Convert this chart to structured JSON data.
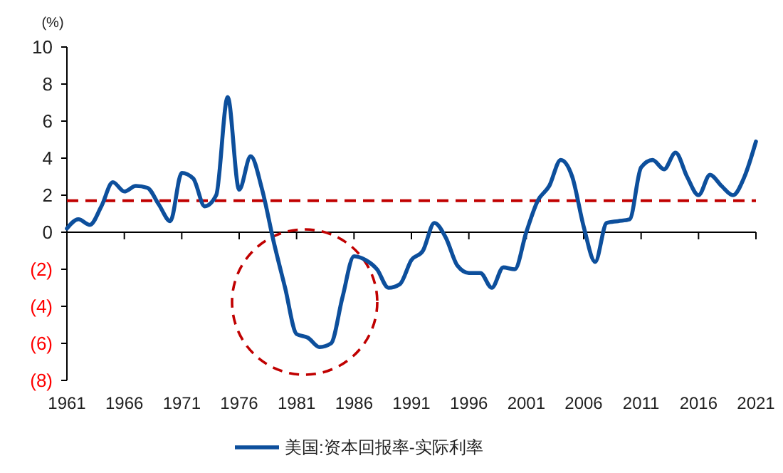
{
  "chart_data": {
    "type": "line",
    "ylabel": "(%)",
    "x": [
      1961,
      1962,
      1963,
      1964,
      1965,
      1966,
      1967,
      1968,
      1969,
      1970,
      1971,
      1972,
      1973,
      1974,
      1975,
      1976,
      1977,
      1978,
      1979,
      1980,
      1981,
      1982,
      1983,
      1984,
      1985,
      1986,
      1987,
      1988,
      1989,
      1990,
      1991,
      1992,
      1993,
      1994,
      1995,
      1996,
      1997,
      1998,
      1999,
      2000,
      2001,
      2002,
      2003,
      2004,
      2005,
      2006,
      2007,
      2008,
      2009,
      2010,
      2011,
      2012,
      2013,
      2014,
      2015,
      2016,
      2017,
      2018,
      2019,
      2020,
      2021
    ],
    "series": [
      {
        "name": "美国:资本回报率-实际利率",
        "color": "#0d4f9c",
        "values": [
          0.2,
          0.7,
          0.4,
          1.4,
          2.7,
          2.2,
          2.5,
          2.4,
          1.5,
          0.6,
          3.2,
          2.9,
          1.4,
          2.0,
          7.3,
          2.3,
          4.1,
          2.3,
          -0.5,
          -3.0,
          -5.5,
          -5.7,
          -6.2,
          -6.0,
          -3.5,
          -1.3,
          -1.5,
          -2.0,
          -3.0,
          -2.8,
          -1.5,
          -1.0,
          0.5,
          -0.3,
          -1.8,
          -2.2,
          -2.2,
          -3.0,
          -1.9,
          -2.0,
          0.0,
          1.7,
          2.5,
          3.9,
          3.0,
          0.3,
          -1.6,
          0.5,
          0.6,
          0.7,
          3.5,
          3.9,
          3.4,
          4.3,
          3.0,
          2.0,
          3.1,
          2.5,
          2.0,
          3.0,
          4.9
        ]
      }
    ],
    "xlim": [
      1961,
      2021
    ],
    "xticks": [
      1961,
      1966,
      1971,
      1976,
      1981,
      1986,
      1991,
      1996,
      2001,
      2006,
      2011,
      2016,
      2021
    ],
    "ylim": [
      -8,
      10
    ],
    "yticks": [
      {
        "value": -8,
        "label": "(8)"
      },
      {
        "value": -6,
        "label": "(6)"
      },
      {
        "value": -4,
        "label": "(4)"
      },
      {
        "value": -2,
        "label": "(2)"
      },
      0,
      2,
      4,
      6,
      8,
      10
    ],
    "ref_lines": [
      {
        "axis": "y",
        "value": 1.7,
        "color": "#c00000",
        "line_style": "dashed"
      }
    ],
    "legend": "bottom",
    "line_style": "solid"
  }
}
